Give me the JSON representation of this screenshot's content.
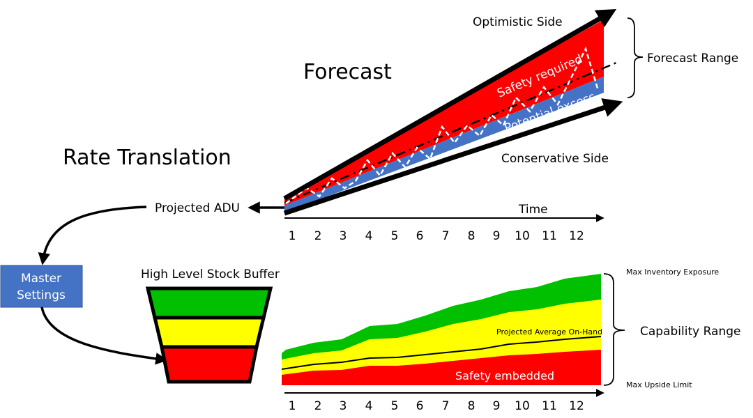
{
  "titles": {
    "forecast": "Forecast",
    "rate_translation": "Rate Translation",
    "stock_buffer": "High Level Stock Buffer"
  },
  "forecast_chart": {
    "optimistic_side": "Optimistic Side",
    "conservative_side": "Conservative Side",
    "forecast_range": "Forecast Range",
    "safety_required": "Safety required",
    "potential_excess": "Potential excess",
    "time_label": "Time",
    "x_ticks": [
      "1",
      "2",
      "3",
      "4",
      "5",
      "6",
      "7",
      "8",
      "9",
      "10",
      "11",
      "12"
    ]
  },
  "flow": {
    "projected_adu": "Projected ADU",
    "master_settings_line1": "Master",
    "master_settings_line2": "Settings"
  },
  "buffer_chart": {
    "max_inventory_exposure": "Max Inventory Exposure",
    "projected_average_on_hand": "Projected Average On-Hand",
    "capability_range": "Capability Range",
    "safety_embedded": "Safety embedded",
    "max_upside_limit": "Max Upside Limit",
    "x_ticks": [
      "1",
      "2",
      "3",
      "4",
      "5",
      "6",
      "7",
      "8",
      "9",
      "10",
      "11",
      "12"
    ]
  },
  "colors": {
    "red": "#ff0000",
    "blue": "#4472c4",
    "green": "#00c000",
    "yellow": "#ffff00",
    "box_blue": "#4472c4"
  }
}
